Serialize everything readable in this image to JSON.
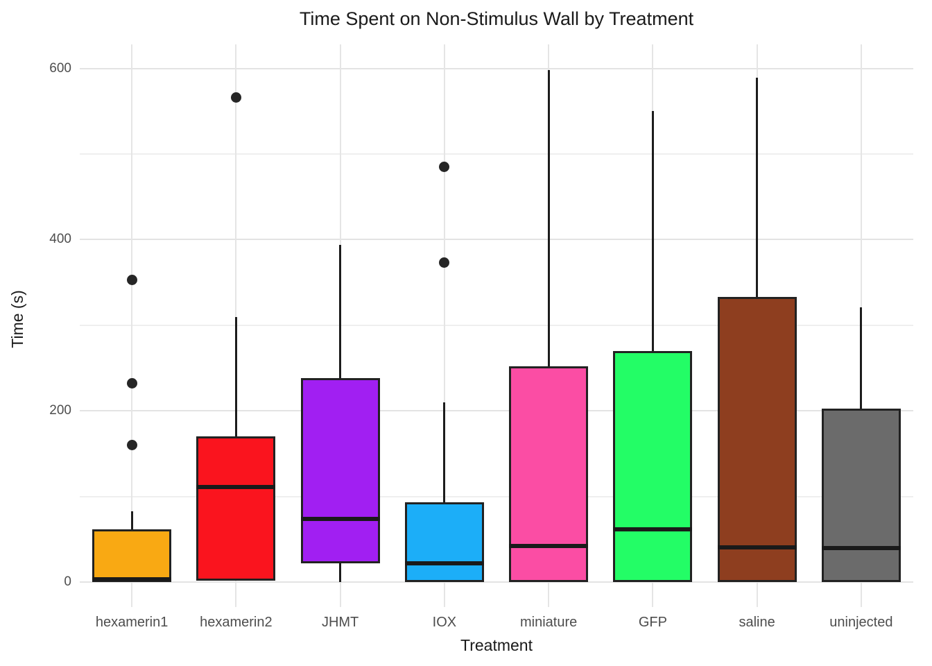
{
  "title": "Time Spent on Non-Stimulus Wall by Treatment",
  "chart_data": {
    "type": "boxplot",
    "title": "Time Spent on Non-Stimulus Wall by Treatment",
    "xlabel": "Treatment",
    "ylabel": "Time (s)",
    "ylim": [
      -29,
      628
    ],
    "yticks": [
      0,
      200,
      400,
      600
    ],
    "minor_gridlines": [
      100,
      300,
      500
    ],
    "grid": "on",
    "legend": "none",
    "categories": [
      "hexamerin1",
      "hexamerin2",
      "JHMT",
      "IOX",
      "miniature",
      "GFP",
      "saline",
      "uninjected"
    ],
    "series": [
      {
        "name": "hexamerin1",
        "color": "#F9A913",
        "min": 0,
        "q1": 0,
        "median": 3,
        "q3": 62,
        "max": 83,
        "outliers": [
          160,
          232,
          353
        ]
      },
      {
        "name": "hexamerin2",
        "color": "#FA141E",
        "min": 0,
        "q1": 2,
        "median": 111,
        "q3": 170,
        "max": 310,
        "outliers": [
          566
        ]
      },
      {
        "name": "JHMT",
        "color": "#A11FF2",
        "min": 0,
        "q1": 22,
        "median": 74,
        "q3": 238,
        "max": 394,
        "outliers": []
      },
      {
        "name": "IOX",
        "color": "#1CAEF8",
        "min": 0,
        "q1": 0,
        "median": 22,
        "q3": 93,
        "max": 210,
        "outliers": [
          373,
          485
        ]
      },
      {
        "name": "miniature",
        "color": "#FB4DA4",
        "min": 0,
        "q1": 0,
        "median": 42,
        "q3": 252,
        "max": 598,
        "outliers": []
      },
      {
        "name": "GFP",
        "color": "#23FD66",
        "min": 0,
        "q1": 0,
        "median": 62,
        "q3": 270,
        "max": 550,
        "outliers": []
      },
      {
        "name": "saline",
        "color": "#8E3E1F",
        "min": 0,
        "q1": 0,
        "median": 41,
        "q3": 333,
        "max": 589,
        "outliers": []
      },
      {
        "name": "uninjected",
        "color": "#6B6B6B",
        "min": 0,
        "q1": 0,
        "median": 40,
        "q3": 203,
        "max": 321,
        "outliers": []
      }
    ]
  },
  "colors": {
    "background": "#FFFFFF",
    "text_primary": "#1A1A1A",
    "text_ticks": "#4D4D4D",
    "grid_major": "#E3E3E3",
    "grid_minor": "#EFEFEF",
    "box_border": "#222222",
    "median_line": "#1A1A1A",
    "outlier_dot": "#262626"
  }
}
